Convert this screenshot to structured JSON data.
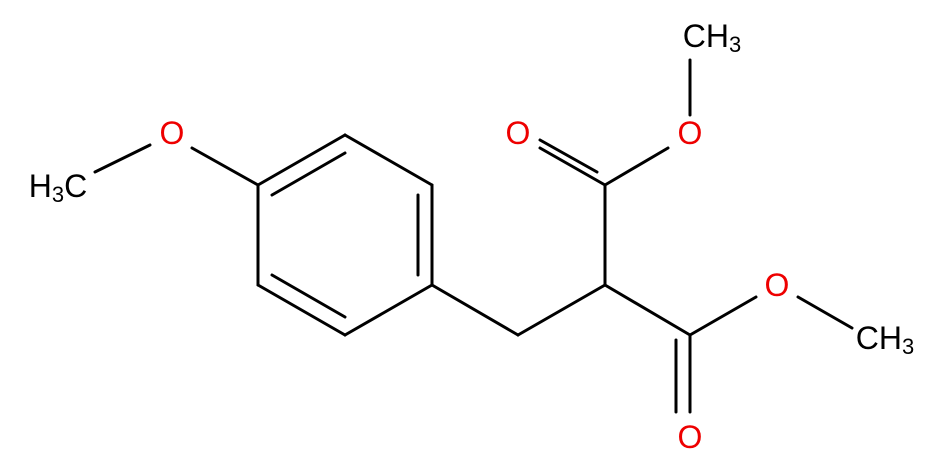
{
  "atoms": [
    {
      "label": "H3C"
    },
    {
      "label": "O"
    },
    {
      "label": "O"
    },
    {
      "label": "O"
    },
    {
      "label": "CH3"
    },
    {
      "label": "O"
    },
    {
      "label": "O"
    },
    {
      "label": "CH3"
    }
  ]
}
